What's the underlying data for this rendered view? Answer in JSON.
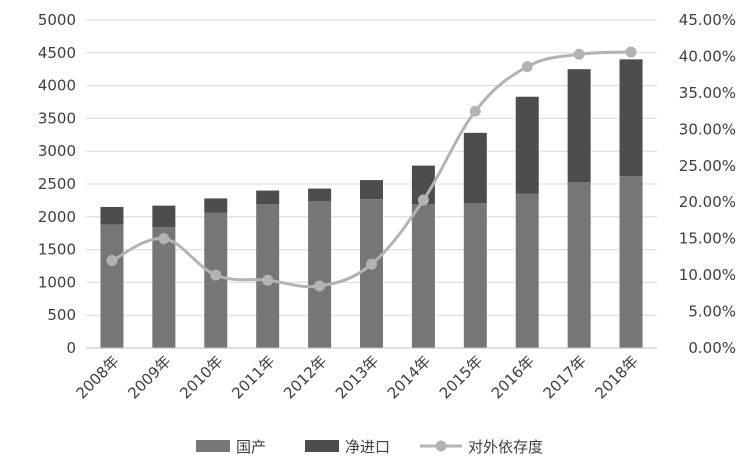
{
  "chart_data": {
    "type": "bar",
    "stacked": true,
    "categories": [
      "2008年",
      "2009年",
      "2010年",
      "2011年",
      "2012年",
      "2013年",
      "2014年",
      "2015年",
      "2016年",
      "2017年",
      "2018年"
    ],
    "series": [
      {
        "name": "国产",
        "type": "bar",
        "axis": "left",
        "color": "#767676",
        "values": [
          1880,
          1840,
          2060,
          2190,
          2240,
          2270,
          2190,
          2210,
          2350,
          2530,
          2620
        ]
      },
      {
        "name": "净进口",
        "type": "bar",
        "axis": "left",
        "color": "#4d4d4d",
        "values": [
          270,
          330,
          220,
          210,
          190,
          290,
          590,
          1070,
          1480,
          1720,
          1780
        ]
      },
      {
        "name": "对外依存度",
        "type": "line",
        "axis": "right",
        "color": "#b3b3b3",
        "values": [
          12.0,
          15.0,
          10.0,
          9.3,
          8.5,
          11.5,
          20.3,
          32.5,
          38.6,
          40.3,
          40.6
        ]
      }
    ],
    "y_left": {
      "min": 0,
      "max": 5000,
      "ticks": [
        "0",
        "500",
        "1000",
        "1500",
        "2000",
        "2500",
        "3000",
        "3500",
        "4000",
        "4500",
        "5000"
      ]
    },
    "y_right": {
      "min": 0,
      "max": 45,
      "ticks": [
        "0.00%",
        "5.00%",
        "10.00%",
        "15.00%",
        "20.00%",
        "25.00%",
        "30.00%",
        "35.00%",
        "40.00%",
        "45.00%"
      ]
    },
    "grid": true,
    "legend_position": "bottom"
  }
}
